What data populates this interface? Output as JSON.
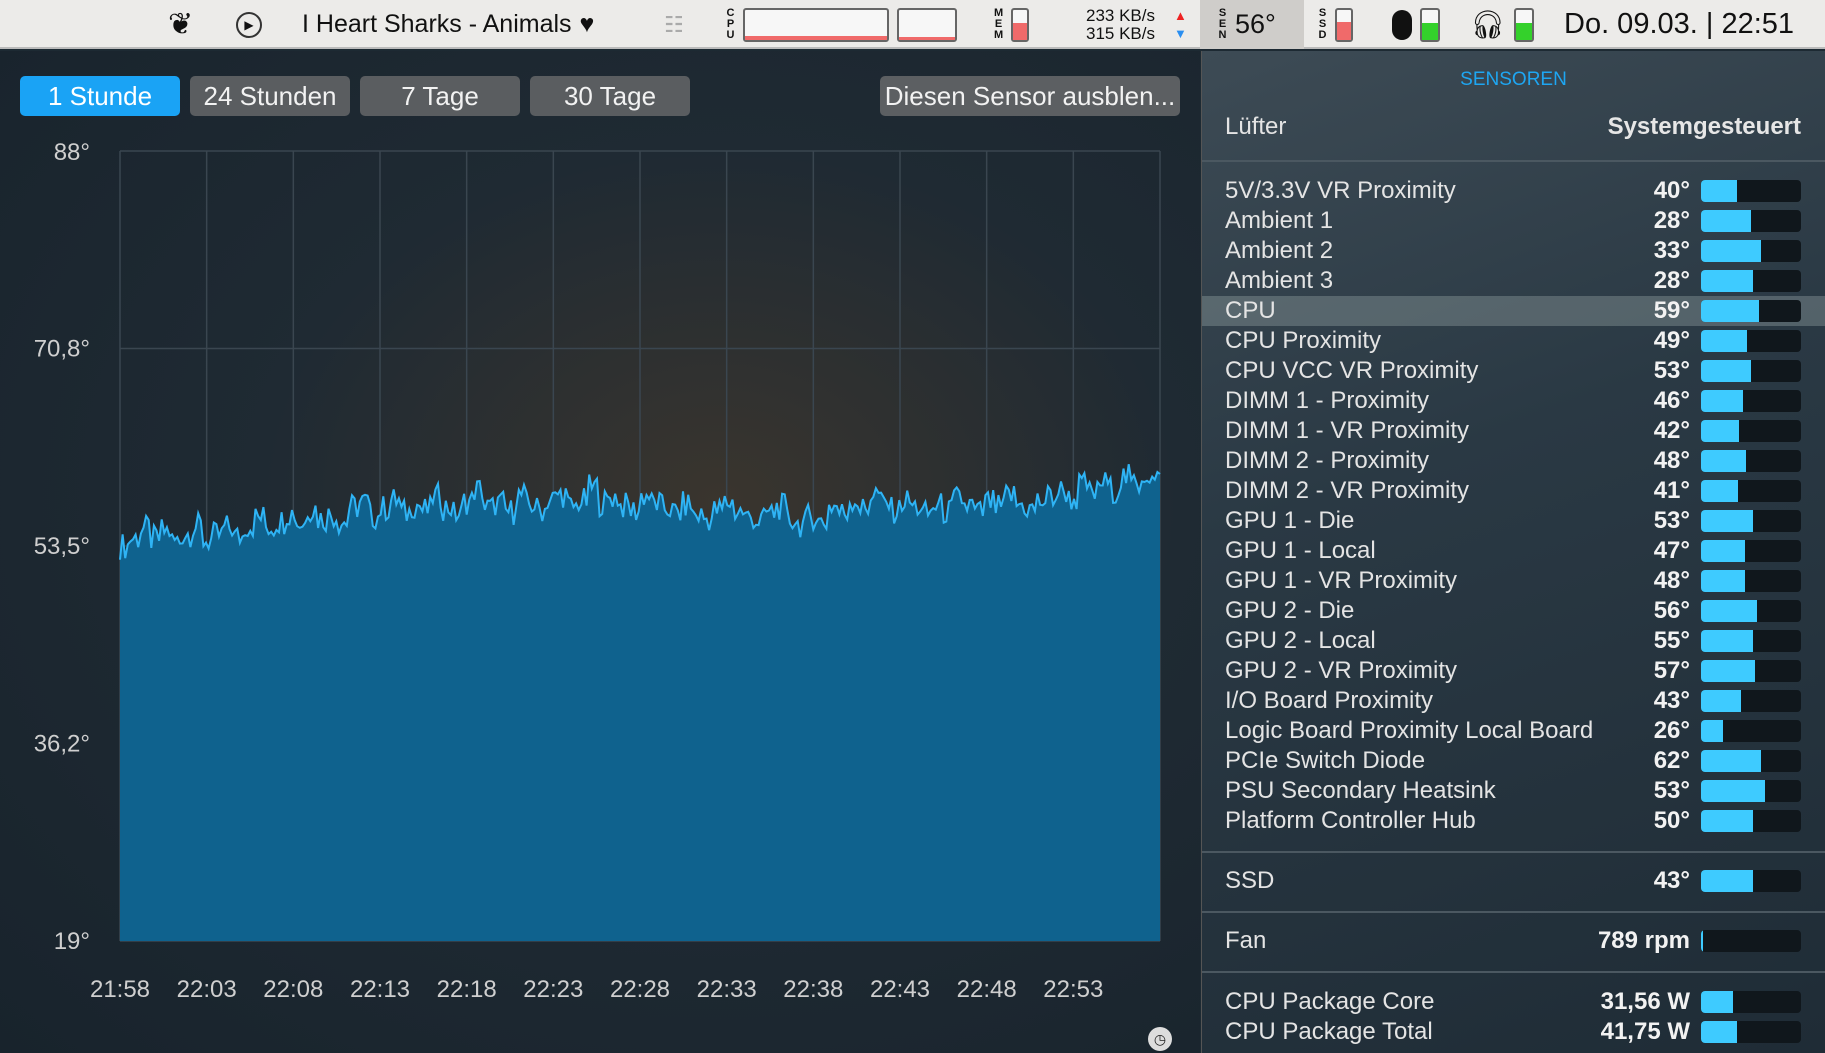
{
  "menubar": {
    "track": "I Heart Sharks - Animals",
    "net_up": "233 KB/s",
    "net_down": "315 KB/s",
    "cpu_label": "CPU",
    "mem_label": "MEM",
    "mem_level": 0.55,
    "sen_label": "SEN",
    "sen_value": "56°",
    "ssd_label": "SSD",
    "ssd_level": 0.6,
    "clock": "Do. 09.03. | 22:51",
    "icons": [
      "app-logo-icon",
      "play-icon",
      "heart-icon",
      "list-icon",
      "mouse-icon",
      "headphones-icon"
    ]
  },
  "tabs": [
    {
      "label": "1 Stunde",
      "active": true
    },
    {
      "label": "24 Stunden"
    },
    {
      "label": "7 Tage"
    },
    {
      "label": "30 Tage"
    }
  ],
  "hide_button": "Diesen Sensor ausblen...",
  "chart_data": {
    "type": "area",
    "y_ticks": [
      "88°",
      "70,8°",
      "53,5°",
      "36,2°",
      "19°"
    ],
    "ylim": [
      19,
      88
    ],
    "x_ticks": [
      "21:58",
      "22:03",
      "22:08",
      "22:13",
      "22:18",
      "22:23",
      "22:28",
      "22:33",
      "22:38",
      "22:43",
      "22:48",
      "22:53"
    ],
    "grid": true,
    "line_color": "#2fb4f5",
    "fill_color": "#0f628e",
    "values": [
      53.5,
      54.2,
      55.0,
      54.1,
      54.8,
      53.9,
      54.6,
      55.2,
      54.0,
      54.4,
      55.1,
      54.3,
      55.3,
      56.0,
      55.2,
      55.7,
      56.4,
      55.5,
      56.8,
      55.9,
      56.2,
      55.6,
      56.9,
      57.3,
      56.1,
      56.8,
      57.5,
      56.4,
      57.1,
      56.6,
      57.8,
      56.9,
      56.3,
      57.4,
      58.4,
      56.8,
      57.2,
      56.5,
      57.9,
      57.1,
      56.7,
      57.6,
      58.0,
      56.9,
      57.4,
      58.6,
      57.3,
      57.8,
      57.0,
      56.6,
      57.9,
      57.2,
      56.8,
      56.4,
      57.1,
      56.2,
      55.9,
      56.6,
      57.3,
      56.5,
      56.0,
      55.7,
      56.4,
      56.9,
      55.8,
      55.4,
      56.1,
      55.6,
      57.0,
      56.4,
      57.5,
      56.7,
      58.1,
      57.2,
      56.6,
      57.4,
      56.9,
      56.3,
      57.0,
      56.5,
      57.6,
      57.0,
      56.4,
      57.3,
      56.8,
      57.9,
      57.1,
      56.7,
      57.4,
      57.8,
      58.3,
      57.6,
      58.8,
      58.1,
      59.0,
      58.4,
      59.5,
      58.9,
      59.8,
      59.2
    ]
  },
  "panel": {
    "title": "SENSOREN",
    "fan_mode_label": "Lüfter",
    "fan_mode_value": "Systemgesteuert",
    "sensors": [
      {
        "name": "5V/3.3V VR Proximity",
        "value": "40°",
        "level": 0.36
      },
      {
        "name": "Ambient 1",
        "value": "28°",
        "level": 0.5
      },
      {
        "name": "Ambient 2",
        "value": "33°",
        "level": 0.6
      },
      {
        "name": "Ambient 3",
        "value": "28°",
        "level": 0.52
      },
      {
        "name": "CPU",
        "value": "59°",
        "level": 0.58,
        "selected": true
      },
      {
        "name": "CPU Proximity",
        "value": "49°",
        "level": 0.46
      },
      {
        "name": "CPU VCC VR Proximity",
        "value": "53°",
        "level": 0.5
      },
      {
        "name": "DIMM 1 - Proximity",
        "value": "46°",
        "level": 0.42
      },
      {
        "name": "DIMM 1 - VR Proximity",
        "value": "42°",
        "level": 0.38
      },
      {
        "name": "DIMM 2 - Proximity",
        "value": "48°",
        "level": 0.45
      },
      {
        "name": "DIMM 2 - VR Proximity",
        "value": "41°",
        "level": 0.37
      },
      {
        "name": "GPU 1 - Die",
        "value": "53°",
        "level": 0.52
      },
      {
        "name": "GPU 1 - Local",
        "value": "47°",
        "level": 0.44
      },
      {
        "name": "GPU 1 - VR Proximity",
        "value": "48°",
        "level": 0.44
      },
      {
        "name": "GPU 2 - Die",
        "value": "56°",
        "level": 0.56
      },
      {
        "name": "GPU 2 - Local",
        "value": "55°",
        "level": 0.52
      },
      {
        "name": "GPU 2 - VR Proximity",
        "value": "57°",
        "level": 0.54
      },
      {
        "name": "I/O Board Proximity",
        "value": "43°",
        "level": 0.4
      },
      {
        "name": "Logic Board Proximity Local Board",
        "value": "26°",
        "level": 0.22
      },
      {
        "name": "PCIe Switch Diode",
        "value": "62°",
        "level": 0.6
      },
      {
        "name": "PSU Secondary Heatsink",
        "value": "53°",
        "level": 0.64
      },
      {
        "name": "Platform Controller Hub",
        "value": "50°",
        "level": 0.52
      }
    ],
    "ssd": {
      "name": "SSD",
      "value": "43°",
      "level": 0.52
    },
    "fan": {
      "name": "Fan",
      "value": "789 rpm",
      "level": 0.02
    },
    "power": [
      {
        "name": "CPU Package Core",
        "value": "31,56 W",
        "level": 0.32
      },
      {
        "name": "CPU Package Total",
        "value": "41,75 W",
        "level": 0.36
      }
    ]
  }
}
